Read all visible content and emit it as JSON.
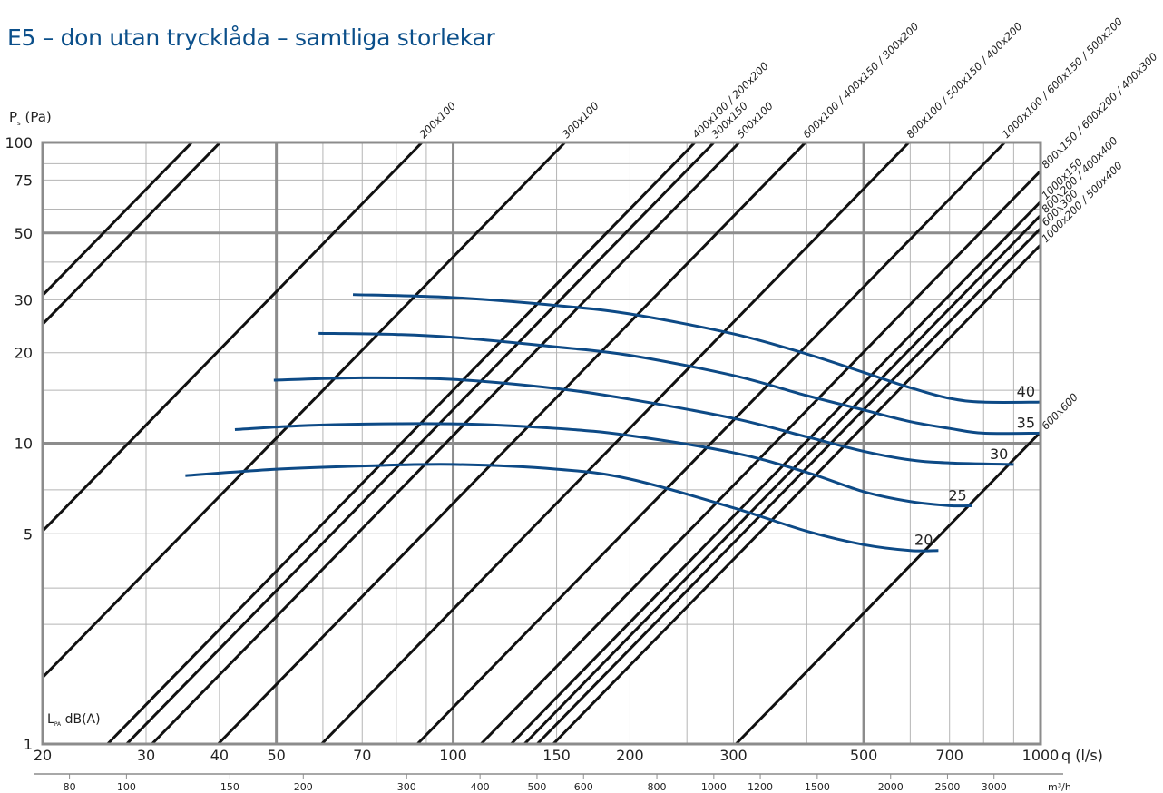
{
  "title": "E5 – don utan trycklåda – samtliga storlekar",
  "colors": {
    "title": "#0b4f8a",
    "grid_minor": "#b5b5b5",
    "grid_major": "#8c8c8c",
    "size_lines": "#111111",
    "sound_curves": "#0d4a86"
  },
  "chart_data": {
    "type": "line",
    "title": "E5 – don utan trycklåda – samtliga storlekar",
    "x_scale": "log",
    "y_scale": "log",
    "xlim": [
      20,
      1000
    ],
    "ylim": [
      1,
      100
    ],
    "grid": true,
    "ylabel_main": "P",
    "ylabel_sub": "s",
    "ylabel_unit": "(Pa)",
    "xlabel": "q (l/s)",
    "x2label": "m³/h",
    "sound_label_main": "L",
    "sound_label_sub": "PA",
    "sound_label_unit": "dB(A)",
    "y_ticks": [
      {
        "value": 100,
        "label": "100"
      },
      {
        "value": 75,
        "label": "75"
      },
      {
        "value": 50,
        "label": "50"
      },
      {
        "value": 30,
        "label": "30"
      },
      {
        "value": 20,
        "label": "20"
      },
      {
        "value": 10,
        "label": "10"
      },
      {
        "value": 5,
        "label": "5"
      },
      {
        "value": 1,
        "label": "1"
      }
    ],
    "y_minor_grid": [
      2.5,
      3.3,
      7,
      15,
      40,
      60,
      85
    ],
    "y_major_grid": [
      10,
      50
    ],
    "x_ticks": [
      {
        "value": 20,
        "label": "20"
      },
      {
        "value": 30,
        "label": "30"
      },
      {
        "value": 40,
        "label": "40"
      },
      {
        "value": 50,
        "label": "50"
      },
      {
        "value": 70,
        "label": "70"
      },
      {
        "value": 100,
        "label": "100"
      },
      {
        "value": 150,
        "label": "150"
      },
      {
        "value": 200,
        "label": "200"
      },
      {
        "value": 300,
        "label": "300"
      },
      {
        "value": 500,
        "label": "500"
      },
      {
        "value": 700,
        "label": "700"
      },
      {
        "value": 1000,
        "label": "1000"
      }
    ],
    "x_grid": [
      30,
      40,
      60,
      70,
      80,
      90,
      150,
      200,
      250,
      300,
      400,
      600,
      700,
      800,
      900
    ],
    "x_major_grid": [
      50,
      100,
      500
    ],
    "x2_ticks": [
      {
        "label": "80",
        "q": 22.22
      },
      {
        "label": "100",
        "q": 27.78
      },
      {
        "label": "150",
        "q": 41.67
      },
      {
        "label": "200",
        "q": 55.56
      },
      {
        "label": "300",
        "q": 83.33
      },
      {
        "label": "400",
        "q": 111.1
      },
      {
        "label": "500",
        "q": 138.9
      },
      {
        "label": "600",
        "q": 166.7
      },
      {
        "label": "800",
        "q": 222.2
      },
      {
        "label": "1000",
        "q": 277.8
      },
      {
        "label": "1200",
        "q": 333.3
      },
      {
        "label": "1500",
        "q": 416.7
      },
      {
        "label": "2000",
        "q": 555.6
      },
      {
        "label": "2500",
        "q": 694.4
      },
      {
        "label": "3000",
        "q": 833.3
      }
    ],
    "size_series": [
      {
        "q_at_100": 40.1,
        "q_at_1": 4.01
      },
      {
        "q_at_100": 35.9,
        "q_at_1": 3.59
      },
      {
        "q_at_100": 88.5,
        "q_at_1": 8.85,
        "name": "200x100"
      },
      {
        "q_at_100": 155.0,
        "q_at_1": 15.5,
        "name": "300x100"
      },
      {
        "q_at_100": 258.0,
        "q_at_1": 25.8,
        "name": "400x100 / 200x200"
      },
      {
        "q_at_100": 278.0,
        "q_at_1": 27.8,
        "name": "300x150"
      },
      {
        "q_at_100": 307.0,
        "q_at_1": 30.7,
        "name": "500x100"
      },
      {
        "q_at_100": 398.0,
        "q_at_1": 39.8,
        "name": "600x100 / 400x150 / 300x200"
      },
      {
        "q_at_100": 597.0,
        "q_at_1": 59.7,
        "name": "800x100 / 500x150 / 400x200"
      },
      {
        "q_at_100": 869.0,
        "q_at_1": 86.9,
        "name": "1000x100 / 600x150 / 500x200"
      },
      {
        "q_at_100": 1115.0,
        "q_at_1": 111.5,
        "name": "800x150 / 600x200 / 400x300"
      },
      {
        "q_at_100": 1255.0,
        "q_at_1": 125.5,
        "name": "1000x150"
      },
      {
        "q_at_100": 1322.0,
        "q_at_1": 132.2,
        "name": "800x200 / 400x400"
      },
      {
        "q_at_100": 1390.0,
        "q_at_1": 139.0,
        "name": "600x300"
      },
      {
        "q_at_100": 1480.0,
        "q_at_1": 148.0,
        "name": "1000x200 / 500x400"
      },
      {
        "q_at_100": 3030.0,
        "q_at_1": 303.0,
        "name": "600x600"
      }
    ],
    "sound_series": [
      {
        "name": "40",
        "points": [
          [
            67.5,
            31.2
          ],
          [
            100,
            30.5
          ],
          [
            150,
            28.7
          ],
          [
            200,
            26.9
          ],
          [
            300,
            23.1
          ],
          [
            400,
            19.8
          ],
          [
            500,
            17.2
          ],
          [
            600,
            15.3
          ],
          [
            700,
            14.1
          ],
          [
            800,
            13.7
          ],
          [
            1000,
            13.7
          ]
        ]
      },
      {
        "name": "35",
        "points": [
          [
            59,
            23.2
          ],
          [
            80,
            23.0
          ],
          [
            100,
            22.5
          ],
          [
            150,
            20.9
          ],
          [
            200,
            19.6
          ],
          [
            300,
            16.8
          ],
          [
            400,
            14.4
          ],
          [
            500,
            12.9
          ],
          [
            600,
            11.8
          ],
          [
            700,
            11.2
          ],
          [
            800,
            10.8
          ],
          [
            1000,
            10.8
          ]
        ]
      },
      {
        "name": "30",
        "points": [
          [
            49.5,
            16.2
          ],
          [
            70,
            16.5
          ],
          [
            100,
            16.3
          ],
          [
            150,
            15.2
          ],
          [
            200,
            14.0
          ],
          [
            300,
            12.1
          ],
          [
            400,
            10.5
          ],
          [
            500,
            9.4
          ],
          [
            600,
            8.8
          ],
          [
            700,
            8.6
          ],
          [
            900,
            8.5
          ]
        ]
      },
      {
        "name": "25",
        "points": [
          [
            42.5,
            11.1
          ],
          [
            60,
            11.5
          ],
          [
            100,
            11.6
          ],
          [
            150,
            11.2
          ],
          [
            200,
            10.6
          ],
          [
            300,
            9.3
          ],
          [
            400,
            8.0
          ],
          [
            500,
            6.9
          ],
          [
            600,
            6.4
          ],
          [
            700,
            6.2
          ],
          [
            765,
            6.2
          ]
        ]
      },
      {
        "name": "20",
        "points": [
          [
            35,
            7.8
          ],
          [
            50,
            8.2
          ],
          [
            70,
            8.4
          ],
          [
            100,
            8.5
          ],
          [
            150,
            8.2
          ],
          [
            200,
            7.6
          ],
          [
            300,
            6.1
          ],
          [
            400,
            5.1
          ],
          [
            500,
            4.6
          ],
          [
            600,
            4.4
          ],
          [
            670,
            4.4
          ]
        ]
      }
    ]
  }
}
